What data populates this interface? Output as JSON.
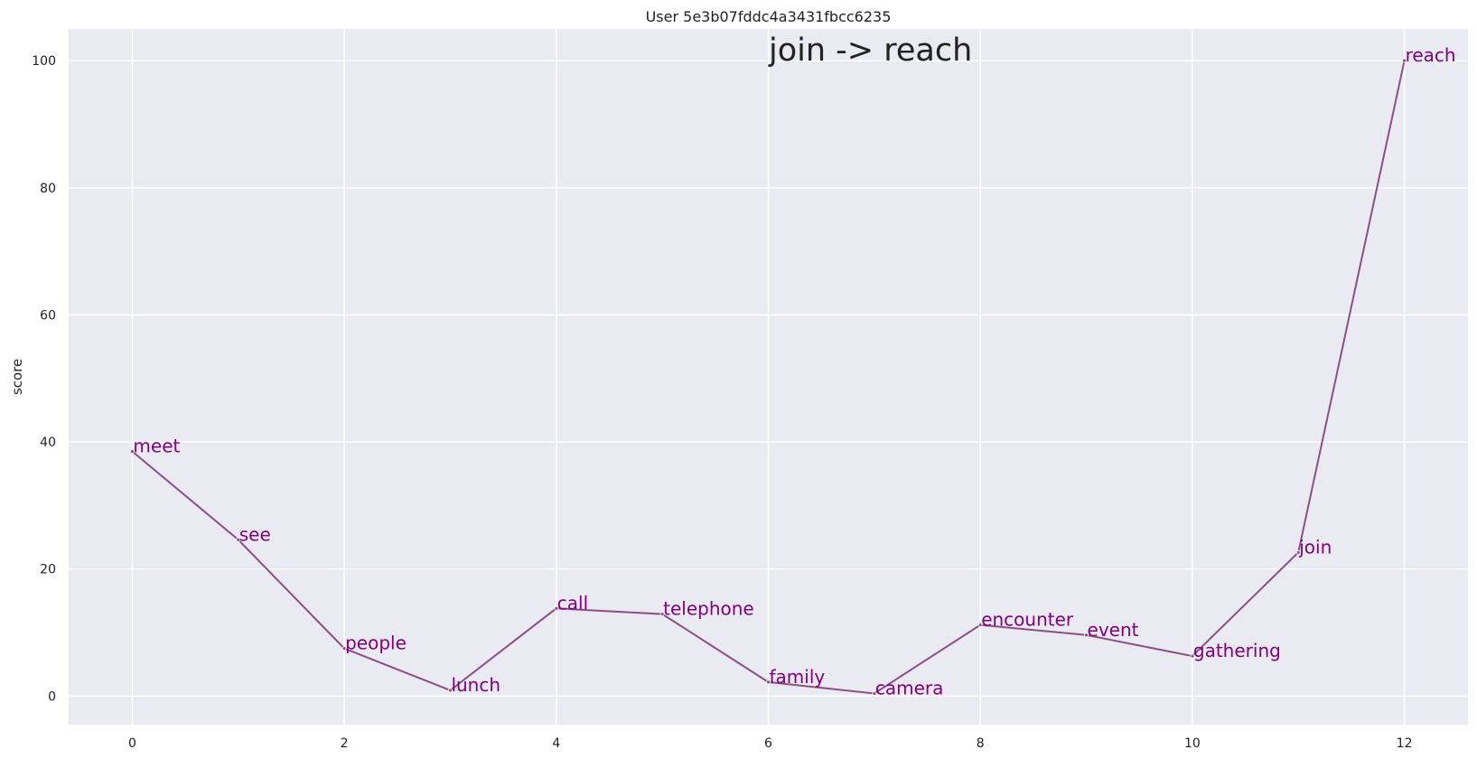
{
  "chart_data": {
    "type": "line",
    "title": "User 5e3b07fddc4a3431fbcc6235",
    "annotation": "join -> reach",
    "xlabel": "",
    "ylabel": "score",
    "xlim": [
      -0.6,
      12.6
    ],
    "ylim": [
      -4.5,
      105
    ],
    "xticks": [
      0,
      2,
      4,
      6,
      8,
      10,
      12
    ],
    "yticks": [
      0,
      20,
      40,
      60,
      80,
      100
    ],
    "grid": true,
    "line_color": "#8b4f86",
    "label_color": "#800080",
    "background": "#eaeaf2",
    "points": [
      {
        "x": 0,
        "y": 38.5,
        "label": "meet"
      },
      {
        "x": 1,
        "y": 24.6,
        "label": "see"
      },
      {
        "x": 2,
        "y": 7.5,
        "label": "people"
      },
      {
        "x": 3,
        "y": 0.9,
        "label": "lunch"
      },
      {
        "x": 4,
        "y": 13.8,
        "label": "call"
      },
      {
        "x": 5,
        "y": 12.9,
        "label": "telephone"
      },
      {
        "x": 6,
        "y": 2.2,
        "label": "family"
      },
      {
        "x": 7,
        "y": 0.4,
        "label": "camera"
      },
      {
        "x": 8,
        "y": 11.2,
        "label": "encounter"
      },
      {
        "x": 9,
        "y": 9.6,
        "label": "event"
      },
      {
        "x": 10,
        "y": 6.3,
        "label": "gathering"
      },
      {
        "x": 11,
        "y": 22.6,
        "label": "join"
      },
      {
        "x": 12,
        "y": 100,
        "label": "reach"
      }
    ]
  }
}
